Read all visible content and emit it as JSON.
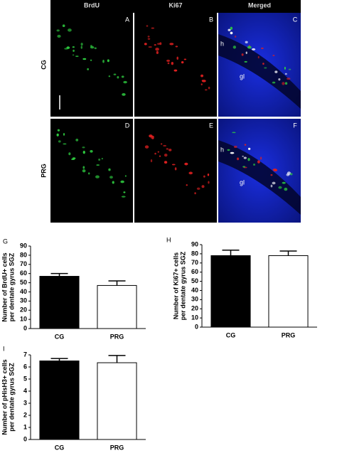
{
  "figure": {
    "columns": [
      "BrdU",
      "Ki67",
      "Merged"
    ],
    "rows": [
      "CG",
      "PRG"
    ],
    "panel_letters": [
      "A",
      "B",
      "C",
      "D",
      "E",
      "F"
    ],
    "region_labels": [
      "h",
      "gl"
    ]
  },
  "chart_data": [
    {
      "type": "bar",
      "panel": "G",
      "ylabel": [
        "Number of BrdU+ cells",
        "per dentate gyrus SGZ"
      ],
      "categories": [
        "CG",
        "PRG"
      ],
      "values": [
        57,
        47
      ],
      "errors": [
        3,
        5
      ],
      "colors": [
        "#000000",
        "#ffffff"
      ],
      "ylim": [
        0,
        90
      ],
      "yticks": [
        0,
        10,
        20,
        30,
        40,
        50,
        60,
        70,
        80,
        90
      ]
    },
    {
      "type": "bar",
      "panel": "H",
      "ylabel": [
        "Number of Ki67+ cells",
        "per dentate gyrus SGZ"
      ],
      "categories": [
        "CG",
        "PRG"
      ],
      "values": [
        78,
        78
      ],
      "errors": [
        6,
        5
      ],
      "colors": [
        "#000000",
        "#ffffff"
      ],
      "ylim": [
        0,
        90
      ],
      "yticks": [
        0,
        10,
        20,
        30,
        40,
        50,
        60,
        70,
        80,
        90
      ]
    },
    {
      "type": "bar",
      "panel": "I",
      "ylabel": [
        "Number of pHisH3+ cells",
        "per dentate gyrus SGZ"
      ],
      "categories": [
        "CG",
        "PRG"
      ],
      "values": [
        6.5,
        6.35
      ],
      "errors": [
        0.2,
        0.6
      ],
      "colors": [
        "#000000",
        "#ffffff"
      ],
      "ylim": [
        0,
        7
      ],
      "yticks": [
        0,
        1,
        2,
        3,
        4,
        5,
        6,
        7
      ]
    }
  ]
}
